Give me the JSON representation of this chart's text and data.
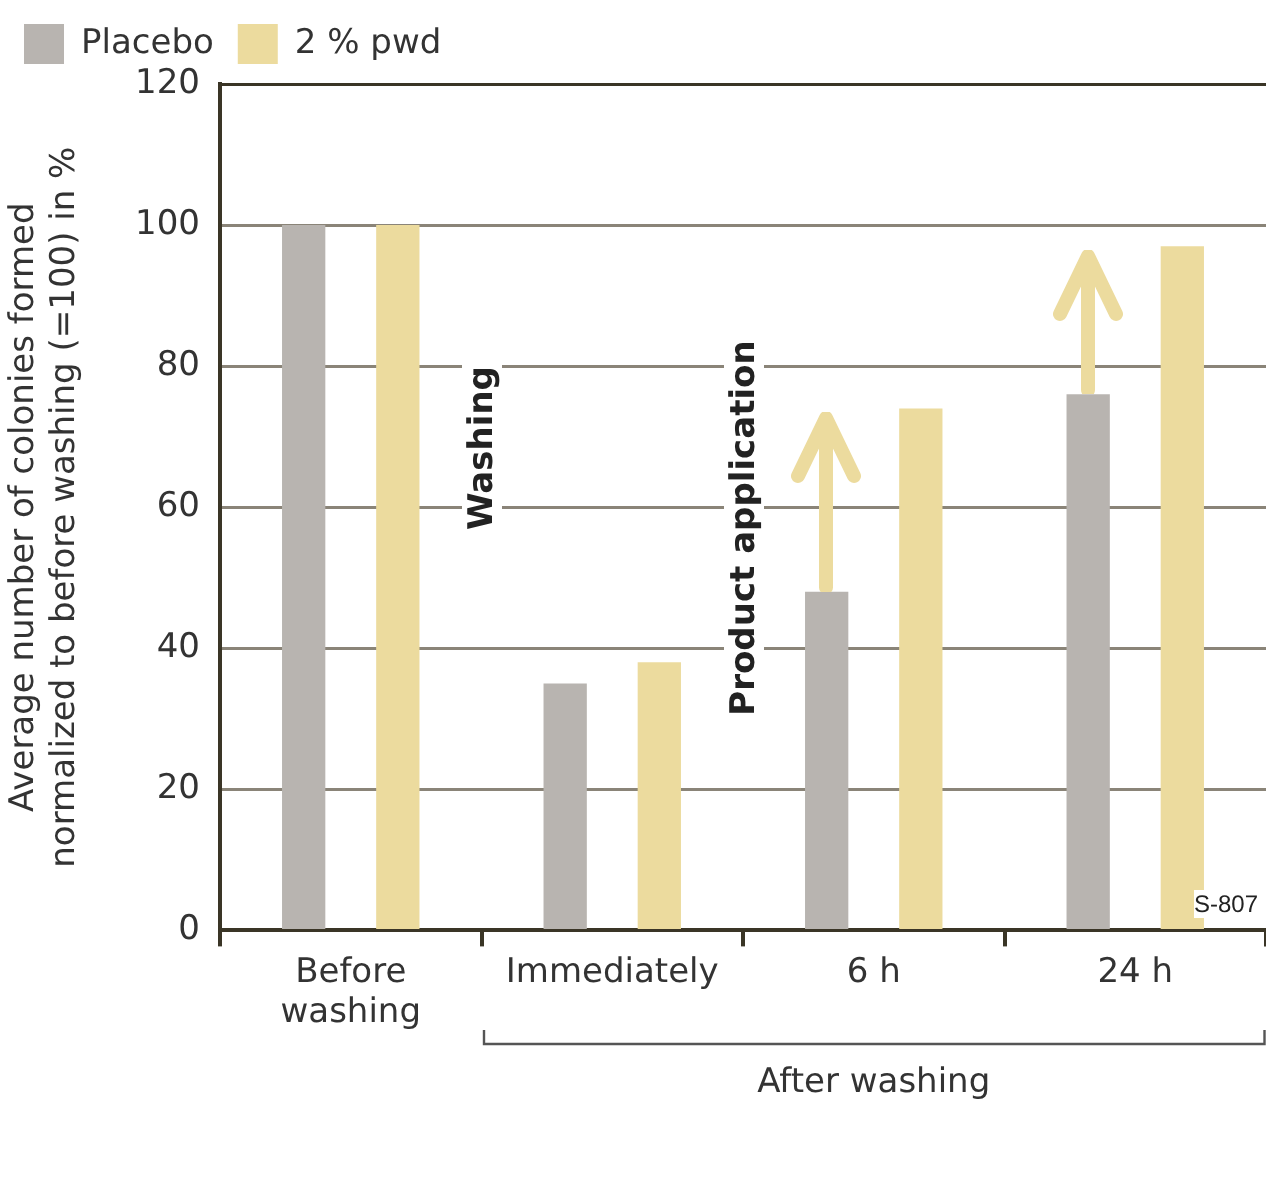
{
  "chart_data": {
    "type": "bar",
    "categories": [
      "Before washing",
      "Immediately",
      "6 h",
      "24 h"
    ],
    "series": [
      {
        "name": "Placebo",
        "color": "#b8b4b0",
        "values": [
          100,
          35,
          48,
          76
        ]
      },
      {
        "name": "2 % pwd",
        "color": "#ecdb9e",
        "values": [
          100,
          38,
          74,
          97
        ]
      }
    ],
    "ylabel": "Average number of colonies formed normalized to before washing (=100) in %",
    "ylim": [
      0,
      120
    ],
    "yticks": [
      0,
      20,
      40,
      60,
      80,
      100,
      120
    ],
    "grid": "y",
    "legend": "top left",
    "annotations": [
      "Washing",
      "Product application",
      "After washing",
      "S-807"
    ]
  }
}
